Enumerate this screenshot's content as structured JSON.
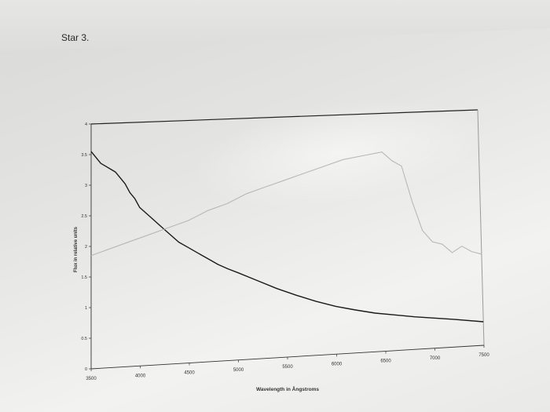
{
  "page": {
    "title": "Star 3."
  },
  "chart_data": {
    "type": "line",
    "title": "",
    "xlabel": "Wavelength in Ångstroms",
    "ylabel": "Flux in relative units",
    "xlim": [
      3500,
      7500
    ],
    "ylim": [
      0,
      4
    ],
    "x_ticks": [
      "3500",
      "4000",
      "4500",
      "5000",
      "5500",
      "6000",
      "6500",
      "7000",
      "7500"
    ],
    "y_ticks": [
      "0",
      "0.5",
      "1",
      "1.5",
      "2",
      "2.5",
      "3",
      "3.5",
      "4"
    ],
    "grid": false,
    "legend": "none",
    "series": [
      {
        "color": "#1a1a1a",
        "x": [
          3500,
          3550,
          3600,
          3650,
          3700,
          3750,
          3800,
          3850,
          3900,
          3950,
          4000,
          4100,
          4200,
          4300,
          4400,
          4500,
          4600,
          4700,
          4800,
          4900,
          5000,
          5200,
          5400,
          5600,
          5800,
          6000,
          6200,
          6400,
          6600,
          6800,
          7000,
          7200,
          7500
        ],
        "y": [
          3.55,
          3.45,
          3.35,
          3.3,
          3.25,
          3.2,
          3.1,
          3.0,
          2.85,
          2.75,
          2.6,
          2.45,
          2.3,
          2.15,
          2.0,
          1.9,
          1.8,
          1.7,
          1.6,
          1.52,
          1.45,
          1.3,
          1.15,
          1.02,
          0.9,
          0.8,
          0.72,
          0.65,
          0.6,
          0.55,
          0.51,
          0.47,
          0.4
        ]
      },
      {
        "color": "#b8b8b8",
        "x": [
          3500,
          3700,
          3900,
          4100,
          4300,
          4500,
          4700,
          4900,
          5100,
          5300,
          5500,
          5700,
          5900,
          6100,
          6300,
          6500,
          6600,
          6700,
          6800,
          6900,
          7000,
          7100,
          7200,
          7300,
          7400,
          7500
        ],
        "y": [
          1.85,
          1.95,
          2.05,
          2.15,
          2.25,
          2.35,
          2.5,
          2.6,
          2.75,
          2.85,
          2.95,
          3.05,
          3.15,
          3.25,
          3.3,
          3.35,
          3.2,
          3.1,
          2.5,
          2.0,
          1.8,
          1.75,
          1.6,
          1.7,
          1.6,
          1.55
        ]
      }
    ]
  }
}
